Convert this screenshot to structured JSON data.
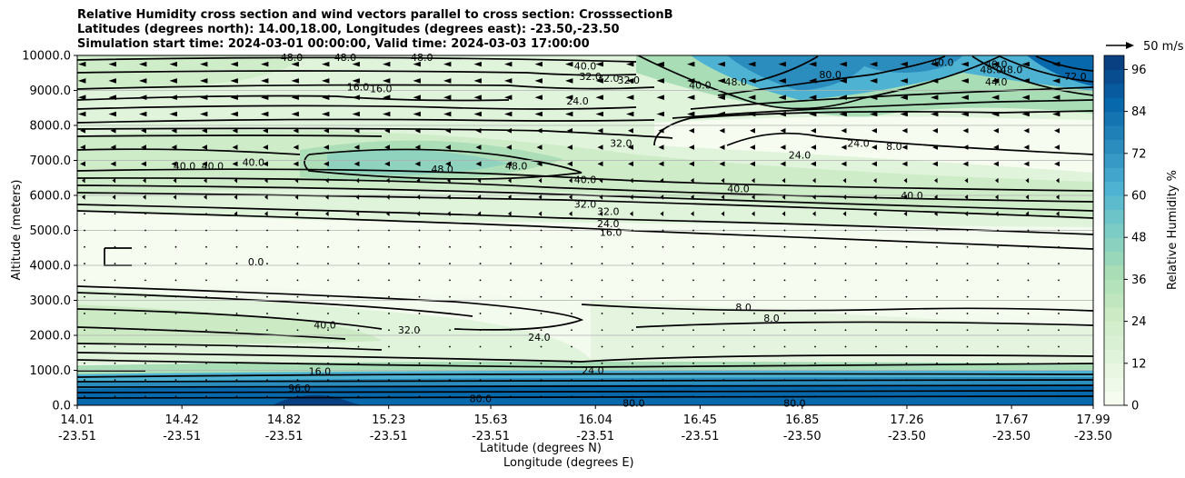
{
  "chart_data": {
    "type": "contourf",
    "title_lines": [
      "Relative Humidity cross section and wind vectors parallel to cross section: CrosssectionB",
      "Latitudes (degrees north): 14.00,18.00, Longitudes (degrees east): -23.50,-23.50",
      "Simulation start time: 2024-03-01 00:00:00, Valid time: 2024-03-03 17:00:00"
    ],
    "ylabel": "Altitude (meters)",
    "xlabel_lines": [
      "Latitude (degrees N)",
      "Longitude (degrees E)"
    ],
    "ylim": [
      0,
      10000
    ],
    "yticks": [
      "0.0",
      "1000.0",
      "2000.0",
      "3000.0",
      "4000.0",
      "5000.0",
      "6000.0",
      "7000.0",
      "8000.0",
      "9000.0",
      "10000.0"
    ],
    "xticks_lat": [
      "14.01",
      "14.42",
      "14.82",
      "15.23",
      "15.63",
      "16.04",
      "16.45",
      "16.85",
      "17.26",
      "17.67",
      "17.99"
    ],
    "xticks_lon": [
      "-23.51",
      "-23.51",
      "-23.51",
      "-23.51",
      "-23.51",
      "-23.51",
      "-23.51",
      "-23.50",
      "-23.50",
      "-23.50",
      "-23.50"
    ],
    "colorbar": {
      "label": "Relative Humidity %",
      "ticks": [
        "0",
        "12",
        "24",
        "36",
        "48",
        "60",
        "72",
        "84",
        "96"
      ],
      "range": [
        0,
        100
      ],
      "colors": [
        "#f7fcf0",
        "#e0f3db",
        "#ccebc5",
        "#a8ddb5",
        "#7bccc4",
        "#4eb3d3",
        "#2b8cbe",
        "#0868ac",
        "#084081"
      ]
    },
    "quiver_key_label": "50 m/s",
    "contour_labels": [
      {
        "text": "48.0",
        "lat": 14.85,
        "alt": 9950
      },
      {
        "text": "48.0",
        "lat": 15.06,
        "alt": 9950
      },
      {
        "text": "48.0",
        "lat": 15.36,
        "alt": 9950
      },
      {
        "text": "40.0",
        "lat": 16.0,
        "alt": 9700
      },
      {
        "text": "32.0",
        "lat": 16.02,
        "alt": 9400
      },
      {
        "text": "32.0",
        "lat": 16.09,
        "alt": 9350
      },
      {
        "text": "32.0",
        "lat": 16.17,
        "alt": 9300
      },
      {
        "text": "40.0",
        "lat": 16.45,
        "alt": 9150
      },
      {
        "text": "48.0",
        "lat": 16.59,
        "alt": 9250
      },
      {
        "text": "16.0",
        "lat": 15.11,
        "alt": 9100
      },
      {
        "text": "16.0",
        "lat": 15.2,
        "alt": 9050
      },
      {
        "text": "24.0",
        "lat": 15.97,
        "alt": 8700
      },
      {
        "text": "32.0",
        "lat": 16.14,
        "alt": 7500
      },
      {
        "text": "40.0",
        "lat": 14.43,
        "alt": 6850
      },
      {
        "text": "40.0",
        "lat": 14.54,
        "alt": 6850
      },
      {
        "text": "40.0",
        "lat": 14.7,
        "alt": 6950
      },
      {
        "text": "48.0",
        "lat": 15.44,
        "alt": 6750
      },
      {
        "text": "48.0",
        "lat": 15.73,
        "alt": 6850
      },
      {
        "text": "40.0",
        "lat": 16.0,
        "alt": 6450
      },
      {
        "text": "40.0",
        "lat": 16.6,
        "alt": 6200
      },
      {
        "text": "40.0",
        "lat": 17.28,
        "alt": 6000
      },
      {
        "text": "32.0",
        "lat": 16.0,
        "alt": 5750
      },
      {
        "text": "32.0",
        "lat": 16.09,
        "alt": 5550
      },
      {
        "text": "24.0",
        "lat": 16.09,
        "alt": 5200
      },
      {
        "text": "16.0",
        "lat": 16.1,
        "alt": 4950
      },
      {
        "text": "24.0",
        "lat": 16.84,
        "alt": 7150
      },
      {
        "text": "24.0",
        "lat": 17.07,
        "alt": 7500
      },
      {
        "text": "8.0",
        "lat": 17.21,
        "alt": 7400
      },
      {
        "text": "40.0",
        "lat": 17.4,
        "alt": 9800
      },
      {
        "text": "48.0",
        "lat": 17.59,
        "alt": 9600
      },
      {
        "text": "48.0",
        "lat": 17.67,
        "alt": 9600
      },
      {
        "text": "44.0",
        "lat": 17.61,
        "alt": 9250
      },
      {
        "text": "40.0",
        "lat": 17.61,
        "alt": 9750
      },
      {
        "text": "80.0",
        "lat": 16.96,
        "alt": 9450
      },
      {
        "text": "72.0",
        "lat": 17.92,
        "alt": 9400
      },
      {
        "text": "0.0",
        "lat": 14.71,
        "alt": 4100
      },
      {
        "text": "40.0",
        "lat": 14.98,
        "alt": 2300
      },
      {
        "text": "32.0",
        "lat": 15.31,
        "alt": 2150
      },
      {
        "text": "24.0",
        "lat": 15.82,
        "alt": 1950
      },
      {
        "text": "8.0",
        "lat": 16.62,
        "alt": 2800
      },
      {
        "text": "8.0",
        "lat": 16.73,
        "alt": 2500
      },
      {
        "text": "16.0",
        "lat": 14.96,
        "alt": 980
      },
      {
        "text": "24.0",
        "lat": 16.03,
        "alt": 1000
      },
      {
        "text": "96.0",
        "lat": 14.88,
        "alt": 500
      },
      {
        "text": "80.0",
        "lat": 15.59,
        "alt": 200
      },
      {
        "text": "80.0",
        "lat": 16.19,
        "alt": 60
      },
      {
        "text": "80.0",
        "lat": 16.82,
        "alt": 60
      }
    ],
    "wind_vectors": {
      "upper_layer_direction": "toward decreasing latitude",
      "lower_layer": "near zero"
    }
  }
}
